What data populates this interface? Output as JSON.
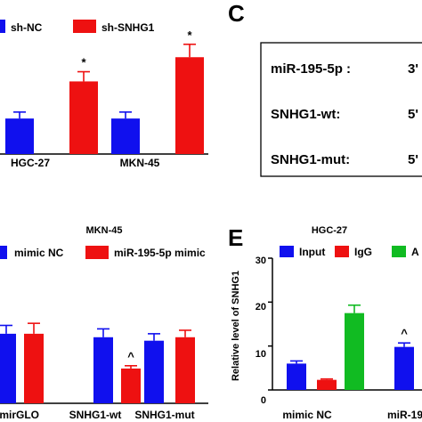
{
  "colors": {
    "blue": "#1010ee",
    "red": "#ee1111",
    "green": "#11bb22"
  },
  "panels": {
    "C": {
      "label": "C",
      "rows": [
        {
          "name": "miR-195-5p :",
          "prime": "3'"
        },
        {
          "name": "SNHG1-wt:",
          "prime": "5'"
        },
        {
          "name": "SNHG1-mut:",
          "prime": "5'"
        }
      ]
    },
    "E": {
      "label": "E"
    }
  },
  "chart_data": [
    {
      "type": "bar",
      "panel": "top-left",
      "categories": [
        "HGC-27",
        "MKN-45"
      ],
      "series": [
        {
          "name": "sh-NC",
          "color": "#1010ee",
          "values": [
            2.2,
            2.2
          ],
          "errors": [
            0.4,
            0.4
          ]
        },
        {
          "name": "sh-SNHG1",
          "color": "#ee1111",
          "values": [
            4.5,
            6.0
          ],
          "errors": [
            0.6,
            0.8
          ]
        }
      ],
      "annotations": [
        {
          "category": "HGC-27",
          "series": "sh-SNHG1",
          "text": "*"
        },
        {
          "category": "MKN-45",
          "series": "sh-SNHG1",
          "text": "*"
        }
      ],
      "ylim": [
        0,
        8
      ]
    },
    {
      "type": "bar",
      "panel": "bottom-left",
      "title": "MKN-45",
      "categories": [
        "pmirGLO",
        "SNHG1-wt",
        "SNHG1-mut"
      ],
      "series": [
        {
          "name": "mimic NC",
          "color": "#1010ee",
          "values": [
            1.0,
            0.95,
            0.9
          ],
          "errors": [
            0.12,
            0.12,
            0.1
          ]
        },
        {
          "name": "miR-195-5p mimic",
          "color": "#ee1111",
          "values": [
            1.0,
            0.5,
            0.95
          ],
          "errors": [
            0.15,
            0.04,
            0.1
          ]
        }
      ],
      "annotations": [
        {
          "category": "SNHG1-wt",
          "series": "miR-195-5p mimic",
          "text": "^"
        }
      ],
      "ylim": [
        0,
        1.6
      ]
    },
    {
      "type": "bar",
      "panel": "E",
      "title": "HGC-27",
      "ylabel": "Relative level of SNHG1",
      "yticks": [
        "0",
        "10",
        "20",
        "30"
      ],
      "ylim": [
        0,
        30
      ],
      "categories": [
        "mimic NC",
        "miR-19"
      ],
      "series": [
        {
          "name": "Input",
          "color": "#1010ee",
          "values": [
            6.0,
            9.8
          ],
          "errors": [
            0.6,
            0.9
          ]
        },
        {
          "name": "IgG",
          "color": "#ee1111",
          "values": [
            2.3,
            null
          ],
          "errors": [
            0.2,
            null
          ]
        },
        {
          "name": "A",
          "color": "#11bb22",
          "values": [
            17.5,
            null
          ],
          "errors": [
            1.8,
            null
          ]
        }
      ],
      "annotations": [
        {
          "category": "miR-19",
          "series": "Input",
          "text": "^"
        }
      ]
    }
  ]
}
